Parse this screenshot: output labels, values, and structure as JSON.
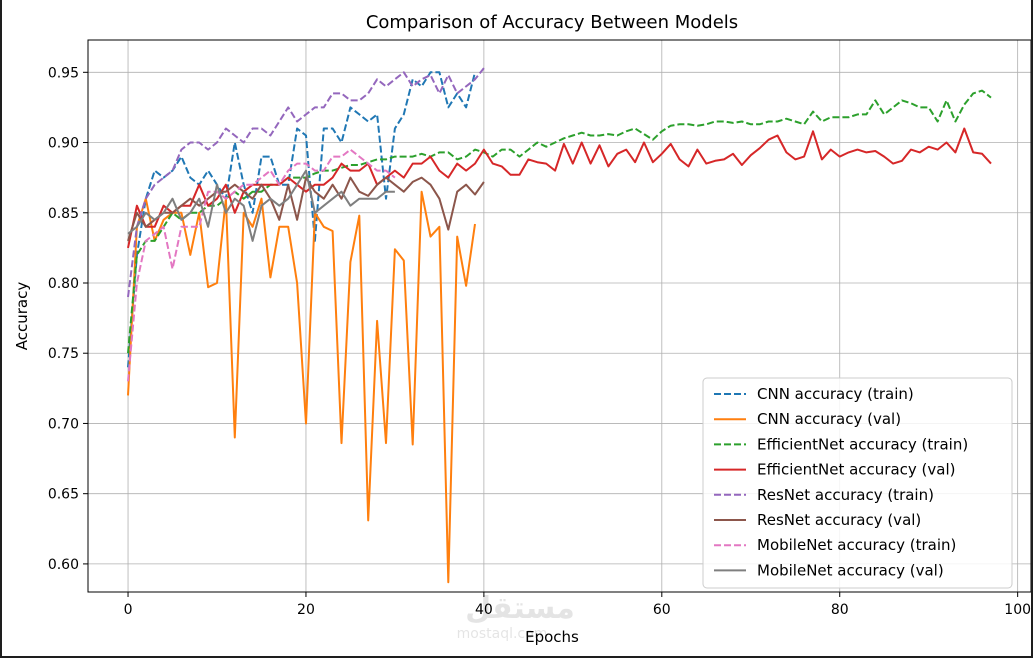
{
  "chart_data": {
    "type": "line",
    "title": "Comparison of Accuracy Between Models",
    "xlabel": "Epochs",
    "ylabel": "Accuracy",
    "xlim": [
      -4.5,
      101.5
    ],
    "ylim": [
      0.58,
      0.973
    ],
    "xticks": [
      0,
      20,
      40,
      60,
      80,
      100
    ],
    "xtick_labels": [
      "0",
      "20",
      "40",
      "60",
      "80",
      "100"
    ],
    "yticks": [
      0.6,
      0.65,
      0.7,
      0.75,
      0.8,
      0.85,
      0.9,
      0.95
    ],
    "ytick_labels": [
      "0.60",
      "0.65",
      "0.70",
      "0.75",
      "0.80",
      "0.85",
      "0.90",
      "0.95"
    ],
    "grid": true,
    "legend_position": "lower-right",
    "series": [
      {
        "name": "CNN accuracy (train)",
        "color": "#1f77b4",
        "dash": true,
        "values": [
          0.74,
          0.82,
          0.86,
          0.88,
          0.875,
          0.88,
          0.89,
          0.875,
          0.87,
          0.88,
          0.87,
          0.86,
          0.9,
          0.87,
          0.85,
          0.89,
          0.89,
          0.87,
          0.87,
          0.91,
          0.905,
          0.83,
          0.91,
          0.91,
          0.9,
          0.925,
          0.92,
          0.915,
          0.92,
          0.86,
          0.91,
          0.92,
          0.945,
          0.94,
          0.95,
          0.95,
          0.925,
          0.935,
          0.925,
          0.95
        ]
      },
      {
        "name": "CNN accuracy (val)",
        "color": "#ff7f0e",
        "dash": false,
        "values": [
          0.72,
          0.84,
          0.86,
          0.83,
          0.845,
          0.85,
          0.85,
          0.82,
          0.85,
          0.797,
          0.8,
          0.86,
          0.69,
          0.85,
          0.84,
          0.86,
          0.804,
          0.84,
          0.84,
          0.8,
          0.7,
          0.85,
          0.84,
          0.837,
          0.686,
          0.815,
          0.848,
          0.631,
          0.773,
          0.686,
          0.824,
          0.816,
          0.685,
          0.865,
          0.833,
          0.84,
          0.587,
          0.833,
          0.798,
          0.842
        ]
      },
      {
        "name": "EfficientNet accuracy (train)",
        "color": "#2ca02c",
        "dash": true,
        "values": [
          0.75,
          0.82,
          0.83,
          0.83,
          0.84,
          0.85,
          0.845,
          0.85,
          0.85,
          0.855,
          0.855,
          0.86,
          0.865,
          0.86,
          0.865,
          0.865,
          0.87,
          0.87,
          0.875,
          0.875,
          0.875,
          0.878,
          0.88,
          0.88,
          0.882,
          0.884,
          0.884,
          0.886,
          0.888,
          0.888,
          0.89,
          0.89,
          0.89,
          0.892,
          0.89,
          0.893,
          0.893,
          0.888,
          0.89,
          0.895,
          0.893,
          0.89,
          0.895,
          0.895,
          0.89,
          0.895,
          0.9,
          0.897,
          0.9,
          0.903,
          0.905,
          0.907,
          0.905,
          0.905,
          0.906,
          0.905,
          0.908,
          0.91,
          0.906,
          0.902,
          0.908,
          0.912,
          0.913,
          0.913,
          0.912,
          0.913,
          0.915,
          0.915,
          0.914,
          0.915,
          0.913,
          0.913,
          0.915,
          0.915,
          0.917,
          0.915,
          0.913,
          0.922,
          0.915,
          0.918,
          0.918,
          0.918,
          0.92,
          0.92,
          0.93,
          0.92,
          0.925,
          0.93,
          0.928,
          0.925,
          0.925,
          0.915,
          0.93,
          0.915,
          0.927,
          0.935,
          0.937,
          0.932
        ]
      },
      {
        "name": "EfficientNet accuracy (val)",
        "color": "#d62728",
        "dash": false,
        "values": [
          0.825,
          0.855,
          0.84,
          0.84,
          0.855,
          0.85,
          0.855,
          0.855,
          0.87,
          0.855,
          0.86,
          0.87,
          0.85,
          0.865,
          0.87,
          0.87,
          0.87,
          0.87,
          0.875,
          0.87,
          0.865,
          0.87,
          0.87,
          0.875,
          0.885,
          0.88,
          0.88,
          0.885,
          0.87,
          0.875,
          0.88,
          0.875,
          0.885,
          0.885,
          0.89,
          0.88,
          0.875,
          0.885,
          0.88,
          0.885,
          0.895,
          0.885,
          0.883,
          0.877,
          0.877,
          0.888,
          0.886,
          0.885,
          0.88,
          0.899,
          0.885,
          0.9,
          0.885,
          0.898,
          0.883,
          0.892,
          0.895,
          0.886,
          0.9,
          0.886,
          0.892,
          0.899,
          0.888,
          0.883,
          0.895,
          0.885,
          0.887,
          0.888,
          0.892,
          0.884,
          0.891,
          0.896,
          0.902,
          0.905,
          0.893,
          0.888,
          0.89,
          0.908,
          0.888,
          0.895,
          0.89,
          0.893,
          0.895,
          0.893,
          0.894,
          0.89,
          0.885,
          0.887,
          0.895,
          0.893,
          0.897,
          0.895,
          0.9,
          0.893,
          0.91,
          0.893,
          0.892,
          0.885
        ]
      },
      {
        "name": "ResNet accuracy (train)",
        "color": "#9467bd",
        "dash": true,
        "values": [
          0.79,
          0.84,
          0.86,
          0.87,
          0.875,
          0.88,
          0.895,
          0.9,
          0.9,
          0.895,
          0.9,
          0.91,
          0.905,
          0.9,
          0.91,
          0.91,
          0.905,
          0.915,
          0.925,
          0.915,
          0.92,
          0.925,
          0.925,
          0.935,
          0.935,
          0.93,
          0.93,
          0.935,
          0.945,
          0.94,
          0.945,
          0.95,
          0.94,
          0.945,
          0.948,
          0.935,
          0.948,
          0.935,
          0.94,
          0.945,
          0.953
        ]
      },
      {
        "name": "ResNet accuracy (val)",
        "color": "#8c564b",
        "dash": false,
        "values": [
          0.83,
          0.85,
          0.84,
          0.845,
          0.85,
          0.85,
          0.855,
          0.86,
          0.855,
          0.86,
          0.865,
          0.865,
          0.87,
          0.865,
          0.86,
          0.87,
          0.86,
          0.845,
          0.87,
          0.845,
          0.875,
          0.865,
          0.86,
          0.87,
          0.86,
          0.875,
          0.865,
          0.862,
          0.87,
          0.875,
          0.87,
          0.865,
          0.872,
          0.875,
          0.87,
          0.86,
          0.838,
          0.865,
          0.87,
          0.863,
          0.872
        ]
      },
      {
        "name": "MobileNet accuracy (train)",
        "color": "#e377c2",
        "dash": true,
        "values": [
          0.73,
          0.8,
          0.83,
          0.835,
          0.84,
          0.81,
          0.84,
          0.84,
          0.84,
          0.865,
          0.865,
          0.86,
          0.865,
          0.87,
          0.87,
          0.875,
          0.88,
          0.87,
          0.88,
          0.885,
          0.885,
          0.88,
          0.88,
          0.89,
          0.89,
          0.895,
          0.89,
          0.885,
          0.88,
          0.88,
          0.875
        ]
      },
      {
        "name": "MobileNet accuracy (val)",
        "color": "#7f7f7f",
        "dash": false,
        "values": [
          0.835,
          0.84,
          0.85,
          0.845,
          0.85,
          0.86,
          0.845,
          0.85,
          0.86,
          0.84,
          0.87,
          0.85,
          0.86,
          0.855,
          0.83,
          0.855,
          0.86,
          0.855,
          0.86,
          0.87,
          0.88,
          0.85,
          0.855,
          0.86,
          0.865,
          0.855,
          0.86,
          0.86,
          0.86,
          0.865,
          0.865
        ]
      }
    ],
    "watermark": {
      "line1": "مستقل",
      "line2": "mostaql.com"
    }
  }
}
